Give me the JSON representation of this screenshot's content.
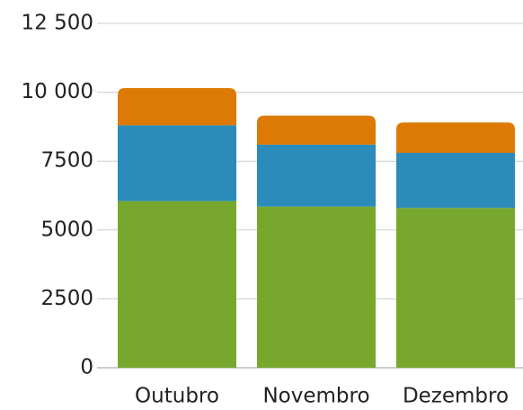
{
  "chart_data": {
    "type": "stacked_bar",
    "categories": [
      "Outubro",
      "Novembro",
      "Dezembro"
    ],
    "series": [
      {
        "color": "#77a82d",
        "values": [
          6050,
          5850,
          5800
        ]
      },
      {
        "color": "#2b8bba",
        "values": [
          2750,
          2250,
          2000
        ]
      },
      {
        "color": "#dd7a05",
        "values": [
          1350,
          1050,
          1100
        ]
      }
    ],
    "ylim": [
      0,
      12500
    ],
    "yticks": [
      0,
      2500,
      5000,
      7500,
      {
        "value": 10000,
        "label": "10 000"
      },
      {
        "value": 12500,
        "label": "12 500"
      }
    ],
    "grid": true
  }
}
